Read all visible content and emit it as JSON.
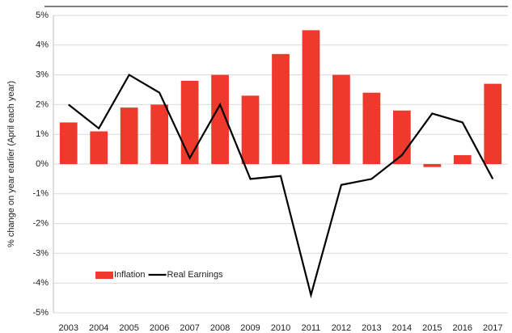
{
  "chart_data": {
    "type": "bar",
    "y_label": "% change on year earlier (April each year)",
    "categories": [
      "2003",
      "2004",
      "2005",
      "2006",
      "2007",
      "2008",
      "2009",
      "2010",
      "2011",
      "2012",
      "2013",
      "2014",
      "2015",
      "2016",
      "2017"
    ],
    "series": [
      {
        "name": "Inflation",
        "type": "bar",
        "color": "#ee3a2c",
        "values": [
          1.4,
          1.1,
          1.9,
          2.0,
          2.8,
          3.0,
          2.3,
          3.7,
          4.5,
          3.0,
          2.4,
          1.8,
          -0.1,
          0.3,
          2.7
        ]
      },
      {
        "name": "Real Earnings",
        "type": "line",
        "color": "#000000",
        "values": [
          2.0,
          1.2,
          3.0,
          2.4,
          0.2,
          2.0,
          -0.5,
          -0.4,
          -4.4,
          -0.7,
          -0.5,
          0.3,
          1.7,
          1.4,
          -0.5
        ]
      }
    ],
    "ylim": [
      -5,
      5
    ],
    "yticks": [
      {
        "value": -5,
        "label": "-5%"
      },
      {
        "value": -4,
        "label": "-4%"
      },
      {
        "value": -3,
        "label": "-3%"
      },
      {
        "value": -2,
        "label": "-2%"
      },
      {
        "value": -1,
        "label": "-1%"
      },
      {
        "value": 0,
        "label": "0%"
      },
      {
        "value": 1,
        "label": "1%"
      },
      {
        "value": 2,
        "label": "2%"
      },
      {
        "value": 3,
        "label": "3%"
      },
      {
        "value": 4,
        "label": "4%"
      },
      {
        "value": 5,
        "label": "5%"
      }
    ],
    "grid": true,
    "legend": "lower left"
  }
}
